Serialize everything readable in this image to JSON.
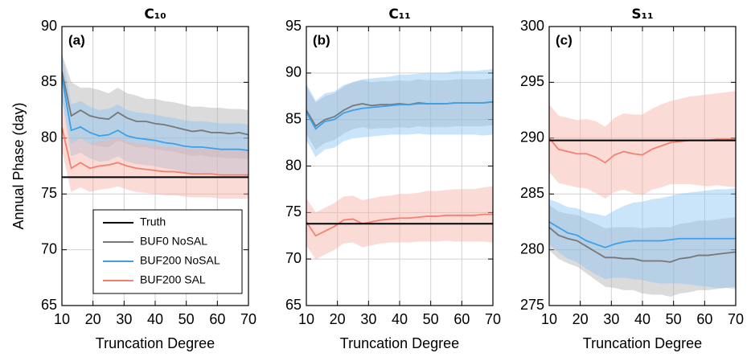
{
  "chart_data": [
    {
      "type": "line",
      "title": "C₁₀",
      "panel_label": "(a)",
      "ylabel": "Annual Phase  (day)",
      "xlabel": "Truncation Degree",
      "x": [
        10,
        13,
        16,
        19,
        22,
        25,
        28,
        31,
        34,
        37,
        40,
        43,
        46,
        49,
        52,
        55,
        58,
        61,
        64,
        67,
        70
      ],
      "xlim": [
        10,
        70
      ],
      "xticks": [
        10,
        20,
        30,
        40,
        50,
        60,
        70
      ],
      "ylim": [
        65,
        90
      ],
      "yticks": [
        65,
        70,
        75,
        80,
        85,
        90
      ],
      "grid": true,
      "legend": "lower right",
      "series": [
        {
          "name": "Truth",
          "color": "#000000",
          "values": [
            76.5,
            76.5,
            76.5,
            76.5,
            76.5,
            76.5,
            76.5,
            76.5,
            76.5,
            76.5,
            76.5,
            76.5,
            76.5,
            76.5,
            76.5,
            76.5,
            76.5,
            76.5,
            76.5,
            76.5,
            76.5
          ]
        },
        {
          "name": "BUF0 NoSAL",
          "color": "#777777",
          "band_color": "#b0b0b0",
          "values": [
            86,
            82,
            82.5,
            82,
            81.8,
            81.7,
            82.3,
            81.8,
            81.5,
            81.5,
            81.3,
            81.2,
            81,
            80.8,
            80.6,
            80.7,
            80.5,
            80.5,
            80.4,
            80.5,
            80.3
          ],
          "upper": [
            87.5,
            85,
            84.5,
            84.5,
            84.3,
            84,
            84.5,
            84,
            83.8,
            83.5,
            83.5,
            83.3,
            83.2,
            83,
            82.8,
            82.8,
            82.7,
            82.7,
            82.6,
            82.6,
            82.5
          ],
          "lower": [
            83.5,
            79.5,
            80,
            79.5,
            79.3,
            79.2,
            79.8,
            79.5,
            79.2,
            79.2,
            79,
            78.9,
            78.8,
            78.6,
            78.4,
            78.5,
            78.3,
            78.3,
            78.2,
            78.2,
            78.1
          ]
        },
        {
          "name": "BUF200 NoSAL",
          "color": "#3ca0ea",
          "band_color": "#8cc4f2",
          "values": [
            85.5,
            80.7,
            81,
            80.5,
            80.2,
            80.3,
            80.7,
            80.2,
            80,
            79.9,
            79.8,
            79.6,
            79.5,
            79.3,
            79.2,
            79.2,
            79.1,
            79,
            79,
            79,
            78.9
          ],
          "upper": [
            87.5,
            83,
            83.3,
            82.8,
            82.5,
            82.6,
            83,
            82.5,
            82.3,
            82.2,
            82.1,
            81.9,
            81.8,
            81.6,
            81.5,
            81.5,
            81.4,
            81.3,
            81.3,
            81.3,
            81.2
          ],
          "lower": [
            83.5,
            78.4,
            78.7,
            78.2,
            77.9,
            78,
            78.4,
            77.9,
            77.7,
            77.6,
            77.5,
            77.3,
            77.2,
            77,
            76.9,
            76.9,
            76.8,
            76.7,
            76.7,
            76.7,
            76.6
          ]
        },
        {
          "name": "BUF200 SAL",
          "color": "#f4806f",
          "band_color": "#f8b0a6",
          "values": [
            81,
            77.3,
            77.8,
            77.3,
            77.5,
            77.6,
            77.8,
            77.5,
            77.3,
            77.2,
            77.1,
            77,
            77,
            76.9,
            76.8,
            76.8,
            76.8,
            76.7,
            76.7,
            76.7,
            76.7
          ],
          "upper": [
            83,
            79.5,
            80,
            79.5,
            79.7,
            79.8,
            80,
            79.7,
            79.5,
            79.4,
            79.3,
            79.2,
            79.2,
            79.1,
            79,
            79,
            79,
            78.9,
            78.9,
            78.9,
            78.9
          ],
          "lower": [
            79,
            75.2,
            75.6,
            75.2,
            75.4,
            75.5,
            75.7,
            75.4,
            75.2,
            75.1,
            75,
            74.9,
            74.9,
            74.8,
            74.7,
            74.7,
            74.7,
            74.6,
            74.6,
            74.6,
            74.6
          ]
        }
      ]
    },
    {
      "type": "line",
      "title": "C₁₁",
      "panel_label": "(b)",
      "xlabel": "Truncation Degree",
      "x": [
        10,
        13,
        16,
        19,
        22,
        25,
        28,
        31,
        34,
        37,
        40,
        43,
        46,
        49,
        52,
        55,
        58,
        61,
        64,
        67,
        70
      ],
      "xlim": [
        10,
        70
      ],
      "xticks": [
        10,
        20,
        30,
        40,
        50,
        60,
        70
      ],
      "ylim": [
        65,
        95
      ],
      "yticks": [
        65,
        70,
        75,
        80,
        85,
        90,
        95
      ],
      "grid": true,
      "series": [
        {
          "color": "#000000",
          "values": [
            73.8,
            73.8,
            73.8,
            73.8,
            73.8,
            73.8,
            73.8,
            73.8,
            73.8,
            73.8,
            73.8,
            73.8,
            73.8,
            73.8,
            73.8,
            73.8,
            73.8,
            73.8,
            73.8,
            73.8,
            73.8
          ]
        },
        {
          "color": "#777777",
          "band_color": "#b0b0b0",
          "values": [
            86,
            84.3,
            85,
            85.3,
            86,
            86.5,
            86.7,
            86.5,
            86.6,
            86.6,
            86.7,
            86.6,
            86.8,
            86.7,
            86.7,
            86.7,
            86.8,
            86.8,
            86.8,
            86.8,
            86.9
          ],
          "upper": [
            88.5,
            86.8,
            87.5,
            87.8,
            88.5,
            89,
            89.2,
            89,
            89.1,
            89.1,
            89.2,
            89.1,
            89.3,
            89.2,
            89.2,
            89.2,
            89.3,
            89.3,
            89.3,
            89.3,
            89.4
          ],
          "lower": [
            83.5,
            81.8,
            82.5,
            82.8,
            83.5,
            84,
            84.2,
            84,
            84.1,
            84.1,
            84.2,
            84.1,
            84.3,
            84.2,
            84.2,
            84.2,
            84.3,
            84.3,
            84.3,
            84.3,
            84.4
          ]
        },
        {
          "color": "#3ca0ea",
          "band_color": "#8cc4f2",
          "values": [
            85.8,
            84,
            84.8,
            85,
            85.7,
            86,
            86.2,
            86.3,
            86.4,
            86.5,
            86.6,
            86.6,
            86.7,
            86.7,
            86.7,
            86.7,
            86.8,
            86.8,
            86.8,
            86.8,
            86.9
          ],
          "upper": [
            88.8,
            87,
            87.8,
            88,
            88.7,
            89,
            89.3,
            89.4,
            89.5,
            89.6,
            89.8,
            89.8,
            89.9,
            90,
            90,
            90,
            90.2,
            90.2,
            90.2,
            90.3,
            90.4
          ],
          "lower": [
            82.8,
            81,
            81.8,
            82,
            82.7,
            83,
            83.1,
            83.2,
            83.3,
            83.4,
            83.4,
            83.4,
            83.5,
            83.4,
            83.4,
            83.4,
            83.4,
            83.4,
            83.4,
            83.3,
            83.4
          ]
        },
        {
          "color": "#f4806f",
          "band_color": "#f8b0a6",
          "values": [
            74,
            72.5,
            73,
            73.5,
            74.2,
            74.3,
            73.8,
            74,
            74.2,
            74.3,
            74.4,
            74.4,
            74.5,
            74.6,
            74.6,
            74.7,
            74.7,
            74.7,
            74.7,
            74.8,
            74.8
          ],
          "upper": [
            76.5,
            75,
            75.5,
            76,
            76.7,
            76.8,
            76.3,
            76.5,
            76.7,
            76.8,
            77,
            77,
            77.1,
            77.3,
            77.3,
            77.4,
            77.5,
            77.5,
            77.5,
            77.7,
            77.8
          ],
          "lower": [
            71.5,
            70,
            70.5,
            71,
            71.7,
            71.8,
            71.3,
            71.5,
            71.7,
            71.8,
            71.8,
            71.8,
            71.9,
            71.9,
            71.9,
            72,
            71.9,
            71.9,
            71.9,
            71.9,
            71.8
          ]
        }
      ]
    },
    {
      "type": "line",
      "title": "S₁₁",
      "panel_label": "(c)",
      "xlabel": "Truncation Degree",
      "x": [
        10,
        13,
        16,
        19,
        22,
        25,
        28,
        31,
        34,
        37,
        40,
        43,
        46,
        49,
        52,
        55,
        58,
        61,
        64,
        67,
        70
      ],
      "xlim": [
        10,
        70
      ],
      "xticks": [
        10,
        20,
        30,
        40,
        50,
        60,
        70
      ],
      "ylim": [
        275,
        300
      ],
      "yticks": [
        275,
        280,
        285,
        290,
        295,
        300
      ],
      "grid": true,
      "series": [
        {
          "color": "#000000",
          "values": [
            289.8,
            289.8,
            289.8,
            289.8,
            289.8,
            289.8,
            289.8,
            289.8,
            289.8,
            289.8,
            289.8,
            289.8,
            289.8,
            289.8,
            289.8,
            289.8,
            289.8,
            289.8,
            289.8,
            289.8,
            289.8
          ]
        },
        {
          "color": "#777777",
          "band_color": "#b0b0b0",
          "values": [
            282,
            281.3,
            281,
            280.8,
            280.3,
            279.8,
            279.3,
            279.3,
            279.2,
            279.2,
            279,
            279,
            279,
            278.9,
            279.2,
            279.3,
            279.5,
            279.5,
            279.6,
            279.7,
            279.8
          ],
          "upper": [
            284,
            283.4,
            283.2,
            283.1,
            282.7,
            282.3,
            281.9,
            282,
            282,
            282,
            281.9,
            282,
            282,
            282,
            282.3,
            282.4,
            282.6,
            282.6,
            282.7,
            282.8,
            282.9
          ],
          "lower": [
            280,
            279.2,
            278.8,
            278.5,
            277.9,
            277.3,
            276.7,
            276.6,
            276.4,
            276.4,
            276.1,
            276,
            276,
            275.8,
            276.1,
            276.2,
            276.4,
            276.4,
            276.5,
            276.6,
            276.7
          ]
        },
        {
          "color": "#3ca0ea",
          "band_color": "#8cc4f2",
          "values": [
            282.5,
            282,
            281.5,
            281.3,
            280.8,
            280.5,
            280.2,
            280.5,
            280.7,
            280.8,
            280.8,
            280.8,
            280.8,
            280.9,
            281,
            281,
            281,
            281,
            281,
            281,
            281
          ],
          "upper": [
            284.5,
            284.2,
            283.8,
            283.7,
            283.3,
            283.2,
            283,
            283.5,
            283.9,
            284.2,
            284.3,
            284.5,
            284.6,
            284.8,
            285,
            285.1,
            285.2,
            285.3,
            285.4,
            285.4,
            285.5
          ],
          "lower": [
            280.5,
            279.8,
            279.2,
            278.9,
            278.3,
            277.8,
            277.4,
            277.5,
            277.5,
            277.4,
            277.3,
            277.1,
            277,
            277,
            277,
            276.9,
            276.8,
            276.7,
            276.6,
            276.6,
            276.5
          ]
        },
        {
          "color": "#f4806f",
          "band_color": "#f8b0a6",
          "values": [
            290,
            289,
            288.8,
            288.6,
            288.6,
            288.3,
            287.8,
            288.5,
            288.8,
            288.6,
            288.5,
            289,
            289.3,
            289.6,
            289.7,
            289.8,
            289.8,
            289.8,
            289.9,
            289.9,
            289.9
          ],
          "upper": [
            293,
            292,
            291.8,
            291.6,
            291.7,
            291.5,
            291,
            291.8,
            292.2,
            292.1,
            292.1,
            292.6,
            293,
            293.3,
            293.5,
            293.7,
            293.8,
            293.9,
            294,
            294.1,
            294.2
          ],
          "lower": [
            287,
            286,
            285.8,
            285.6,
            285.5,
            285.1,
            284.6,
            285.2,
            285.4,
            285.1,
            284.9,
            285.4,
            285.6,
            285.9,
            285.9,
            285.9,
            285.8,
            285.7,
            285.8,
            285.7,
            285.6
          ]
        }
      ]
    }
  ]
}
